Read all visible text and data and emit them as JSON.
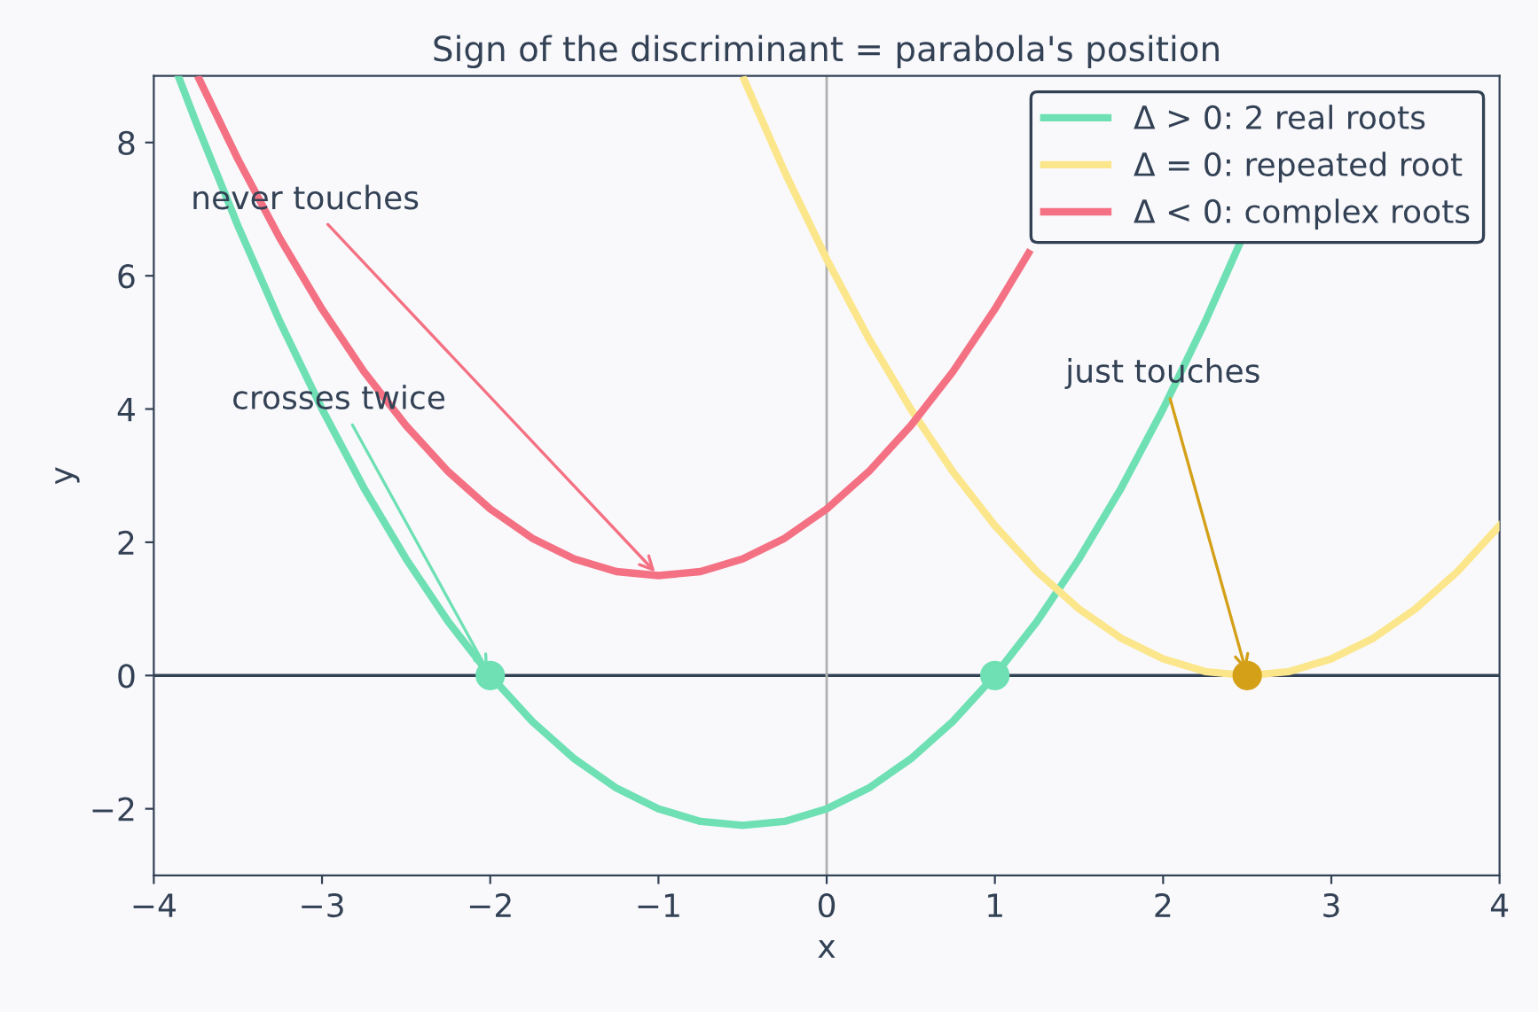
{
  "chart_data": {
    "type": "line",
    "title": "Sign of the discriminant = parabola's position",
    "xlabel": "x",
    "ylabel": "y",
    "xlim": [
      -4,
      4
    ],
    "ylim": [
      -3,
      9
    ],
    "xticks": [
      -4,
      -3,
      -2,
      -1,
      0,
      1,
      2,
      3,
      4
    ],
    "yticks": [
      -2,
      0,
      2,
      4,
      6,
      8
    ],
    "grid": false,
    "legend": "top right",
    "series": [
      {
        "name": "Δ > 0: 2 real roots",
        "color": "#6ee0b4",
        "x": [
          -3.85,
          -3.75,
          -3.5,
          -3.25,
          -3,
          -2.75,
          -2.5,
          -2.25,
          -2,
          -1.75,
          -1.5,
          -1.25,
          -1,
          -0.75,
          -0.5,
          -0.25,
          0,
          0.25,
          0.5,
          0.75,
          1,
          1.25,
          1.5,
          1.75,
          2,
          2.25,
          2.45
        ],
        "values": [
          8.97,
          8.31,
          6.75,
          5.31,
          4,
          2.81,
          1.75,
          0.81,
          0,
          -0.69,
          -1.25,
          -1.69,
          -2,
          -2.19,
          -2.25,
          -2.19,
          -2,
          -1.69,
          -1.25,
          -0.69,
          0,
          0.81,
          1.75,
          2.81,
          4,
          5.31,
          6.45
        ]
      },
      {
        "name": "Δ = 0: repeated root",
        "color": "#fce68c",
        "x": [
          -0.49,
          -0.25,
          0,
          0.25,
          0.5,
          0.75,
          1,
          1.25,
          1.5,
          1.75,
          2,
          2.25,
          2.5,
          2.75,
          3,
          3.25,
          3.5,
          3.75,
          4
        ],
        "values": [
          8.94,
          7.56,
          6.25,
          5.06,
          4,
          3.06,
          2.25,
          1.56,
          1,
          0.56,
          0.25,
          0.06,
          0,
          0.06,
          0.25,
          0.56,
          1,
          1.56,
          2.25
        ]
      },
      {
        "name": "Δ < 0: complex roots",
        "color": "#f47183",
        "x": [
          -3.73,
          -3.5,
          -3.25,
          -3,
          -2.75,
          -2.5,
          -2.25,
          -2,
          -1.75,
          -1.5,
          -1.25,
          -1,
          -0.75,
          -0.5,
          -0.25,
          0,
          0.25,
          0.5,
          0.75,
          1,
          1.2
        ],
        "values": [
          8.95,
          7.75,
          6.56,
          5.5,
          4.56,
          3.75,
          3.06,
          2.5,
          2.06,
          1.75,
          1.56,
          1.5,
          1.56,
          1.75,
          2.06,
          2.5,
          3.06,
          3.75,
          4.56,
          5.5,
          6.34
        ]
      },
      {
        "type": "scatter",
        "color": "#6ee0b4",
        "marker": "circle",
        "x": [
          -2,
          1
        ],
        "values": [
          0,
          0
        ]
      },
      {
        "type": "scatter",
        "color": "#d4a017",
        "marker": "circle",
        "x": [
          2.5
        ],
        "values": [
          0
        ]
      }
    ],
    "ref_lines": [
      {
        "axis": "y",
        "value": 0,
        "color": "#334155"
      },
      {
        "axis": "x",
        "value": 0,
        "color": "#b0b0b0"
      }
    ],
    "annotations": [
      {
        "text": "never touches",
        "x": -1,
        "y": 1.5
      },
      {
        "text": "crosses twice",
        "x": -2,
        "y": 0
      },
      {
        "text": "just touches",
        "x": 2.5,
        "y": 0
      }
    ]
  }
}
